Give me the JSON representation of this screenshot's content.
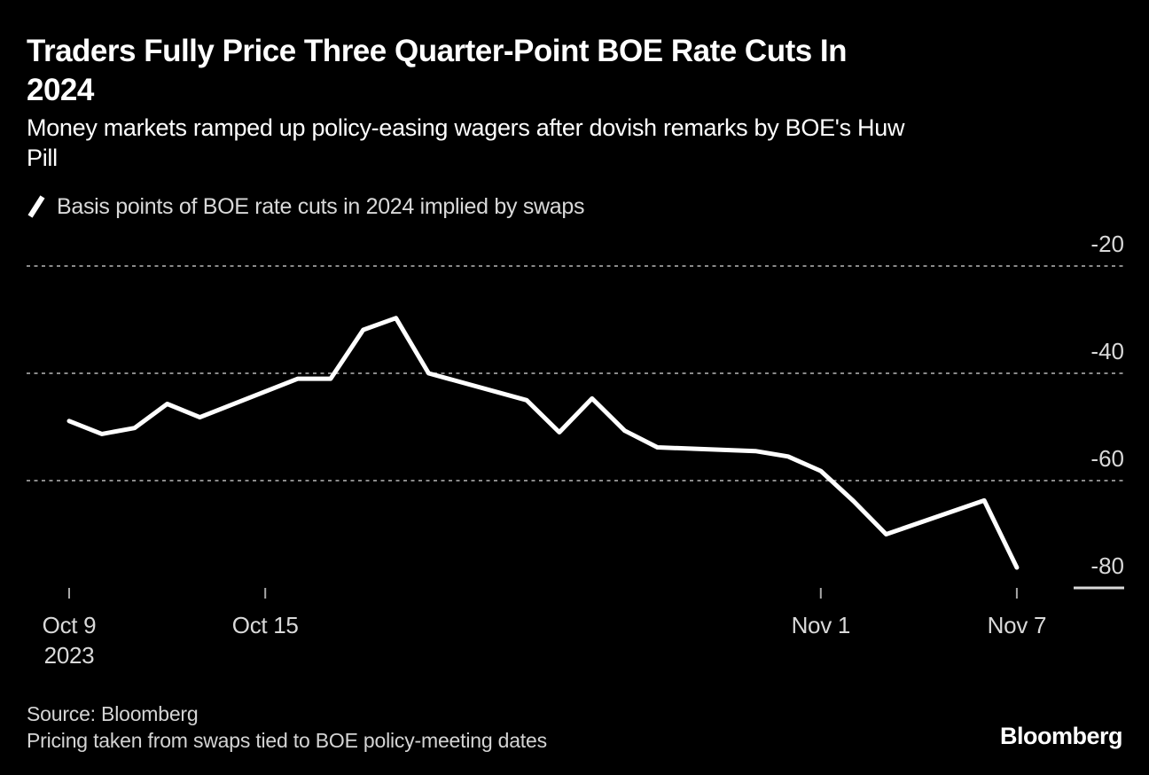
{
  "header": {
    "title_lines": [
      "Traders Fully Price Three Quarter-Point BOE Rate Cuts In",
      "2024"
    ],
    "subtitle_lines": [
      "Money markets ramped up policy-easing wagers after dovish remarks by BOE's Huw",
      "Pill"
    ]
  },
  "legend": {
    "marker": "white-slash-line-sample",
    "label": "Basis points of BOE rate cuts in 2024 implied by swaps"
  },
  "chart_data": {
    "type": "line",
    "title": "Traders Fully Price Three Quarter-Point BOE Rate Cuts In 2024",
    "subtitle": "Money markets ramped up policy-easing wagers after dovish remarks by BOE's Huw Pill",
    "ylabel": "Basis points of BOE rate cuts in 2024 implied by swaps",
    "xlabel": "",
    "ylim": [
      -84,
      -16
    ],
    "grid": "dotted-horizontal",
    "legend_position": "top-left",
    "series": [
      {
        "name": "Basis points of BOE rate cuts in 2024 implied by swaps",
        "dates": [
          "Oct 9",
          "Oct 10",
          "Oct 11",
          "Oct 12",
          "Oct 13",
          "Oct 16",
          "Oct 17",
          "Oct 18",
          "Oct 19",
          "Oct 20",
          "Oct 23",
          "Oct 24",
          "Oct 25",
          "Oct 26",
          "Oct 27",
          "Oct 30",
          "Oct 31",
          "Nov 1",
          "Nov 2",
          "Nov 3",
          "Nov 6",
          "Nov 7"
        ],
        "day_index": [
          0,
          1,
          2,
          3,
          4,
          7,
          8,
          9,
          10,
          11,
          14,
          15,
          16,
          17,
          18,
          21,
          22,
          23,
          24,
          25,
          28,
          29
        ],
        "values": [
          -48.9,
          -51.3,
          -50.2,
          -45.7,
          -48.2,
          -41.0,
          -41.0,
          -31.9,
          -29.7,
          -40.0,
          -45.0,
          -51.0,
          -44.7,
          -50.7,
          -53.8,
          -54.5,
          -55.5,
          -58.2,
          -63.8,
          -70.0,
          -63.7,
          -76.2
        ]
      }
    ],
    "y_axis": {
      "tick_labels": [
        "-20",
        "-40",
        "-60",
        "-80"
      ],
      "tick_values": [
        -20,
        -40,
        -60,
        -80
      ],
      "gridline_values": [
        -20,
        -40,
        -60
      ],
      "baseline_value": -80
    },
    "x_axis": {
      "ticks": [
        {
          "day_index": 0,
          "label_lines": [
            "Oct 9",
            "2023"
          ]
        },
        {
          "day_index": 6,
          "label_lines": [
            "Oct 15"
          ]
        },
        {
          "day_index": 23,
          "label_lines": [
            "Nov 1"
          ]
        },
        {
          "day_index": 29,
          "label_lines": [
            "Nov 7"
          ]
        }
      ]
    }
  },
  "footer": {
    "source_line1": "Source: Bloomberg",
    "source_line2": "Pricing taken from swaps tied to BOE policy-meeting dates",
    "brand": "Bloomberg"
  },
  "colors": {
    "background": "#000000",
    "series_line": "#ffffff",
    "text_primary": "#ffffff",
    "text_secondary": "#d9d9d9",
    "gridline": "#8a8a8a",
    "tick": "#a8a8a8",
    "baseline": "#d9d9d9"
  }
}
